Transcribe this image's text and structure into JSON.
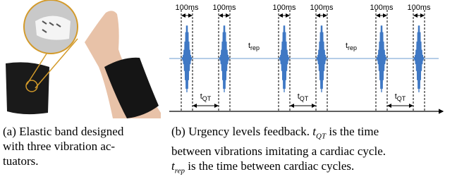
{
  "diagram": {
    "window_labels": [
      "100ms",
      "100ms",
      "100ms",
      "100ms",
      "100ms",
      "100ms"
    ],
    "t_rep_labels": [
      {
        "base": "t",
        "sub": "rep"
      },
      {
        "base": "t",
        "sub": "rep"
      }
    ],
    "t_qt_labels": [
      {
        "base": "t",
        "sub": "QT"
      },
      {
        "base": "t",
        "sub": "QT"
      },
      {
        "base": "t",
        "sub": "QT"
      }
    ]
  },
  "caption_a": {
    "lines": [
      "(a) Elastic band designed",
      "with three vibration ac-",
      "tuators."
    ]
  },
  "caption_b": {
    "line1_prefix": "(b) Urgency levels feedback.",
    "line1_math": {
      "base": "t",
      "sub": "QT"
    },
    "line1_suffix": "is the time",
    "line2": "between vibrations imitating a cardiac cycle.",
    "line3_math": {
      "base": "t",
      "sub": "rep"
    },
    "line3_suffix": "is the time between cardiac cycles."
  }
}
